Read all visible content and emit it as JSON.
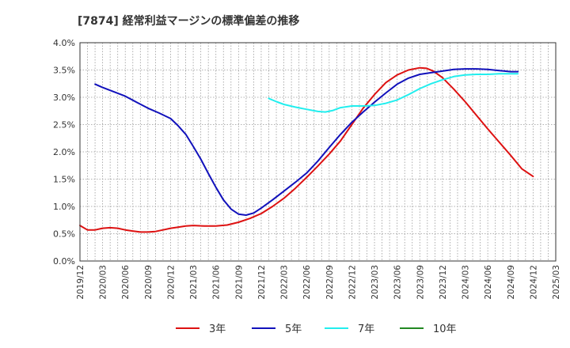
{
  "chart_data": {
    "type": "line",
    "title": "[7874]  経常利益マージンの標準偏差の推移",
    "xlabel": "",
    "ylabel": "",
    "x_ticks": [
      "2019/12",
      "2020/03",
      "2020/06",
      "2020/09",
      "2020/12",
      "2021/03",
      "2021/06",
      "2021/09",
      "2021/12",
      "2022/03",
      "2022/06",
      "2022/09",
      "2022/12",
      "2023/03",
      "2023/06",
      "2023/09",
      "2023/12",
      "2024/03",
      "2024/06",
      "2024/09",
      "2024/12",
      "2025/03"
    ],
    "y_ticks": [
      "0.0%",
      "0.5%",
      "1.0%",
      "1.5%",
      "2.0%",
      "2.5%",
      "3.0%",
      "3.5%",
      "4.0%"
    ],
    "ylim": [
      0,
      4.0
    ],
    "grid": true,
    "legend_position": "bottom",
    "series": [
      {
        "name": "3年",
        "color": "#dd1111",
        "points": [
          [
            0,
            0.65
          ],
          [
            0.33,
            0.57
          ],
          [
            0.67,
            0.57
          ],
          [
            1,
            0.6
          ],
          [
            1.33,
            0.61
          ],
          [
            1.67,
            0.6
          ],
          [
            2,
            0.57
          ],
          [
            2.33,
            0.55
          ],
          [
            2.67,
            0.53
          ],
          [
            3,
            0.53
          ],
          [
            3.33,
            0.54
          ],
          [
            3.67,
            0.57
          ],
          [
            4,
            0.6
          ],
          [
            4.33,
            0.62
          ],
          [
            4.67,
            0.64
          ],
          [
            5,
            0.65
          ],
          [
            5.5,
            0.64
          ],
          [
            6,
            0.64
          ],
          [
            6.5,
            0.66
          ],
          [
            7,
            0.71
          ],
          [
            7.5,
            0.78
          ],
          [
            8,
            0.87
          ],
          [
            8.5,
            1.0
          ],
          [
            9,
            1.15
          ],
          [
            9.5,
            1.33
          ],
          [
            10,
            1.53
          ],
          [
            10.5,
            1.74
          ],
          [
            11,
            1.96
          ],
          [
            11.5,
            2.2
          ],
          [
            12,
            2.5
          ],
          [
            12.5,
            2.8
          ],
          [
            13,
            3.05
          ],
          [
            13.5,
            3.27
          ],
          [
            14,
            3.41
          ],
          [
            14.5,
            3.5
          ],
          [
            15,
            3.54
          ],
          [
            15.3,
            3.53
          ],
          [
            15.6,
            3.48
          ],
          [
            16,
            3.36
          ],
          [
            16.5,
            3.15
          ],
          [
            17,
            2.92
          ],
          [
            17.5,
            2.67
          ],
          [
            18,
            2.42
          ],
          [
            18.5,
            2.18
          ],
          [
            19,
            1.94
          ],
          [
            19.5,
            1.69
          ],
          [
            20,
            1.55
          ]
        ]
      },
      {
        "name": "5年",
        "color": "#1111bb",
        "points": [
          [
            0.67,
            3.24
          ],
          [
            1,
            3.18
          ],
          [
            1.5,
            3.1
          ],
          [
            2,
            3.02
          ],
          [
            2.5,
            2.91
          ],
          [
            3,
            2.8
          ],
          [
            3.5,
            2.71
          ],
          [
            4,
            2.61
          ],
          [
            4.33,
            2.48
          ],
          [
            4.67,
            2.32
          ],
          [
            5,
            2.1
          ],
          [
            5.33,
            1.87
          ],
          [
            5.67,
            1.6
          ],
          [
            6,
            1.35
          ],
          [
            6.33,
            1.12
          ],
          [
            6.67,
            0.95
          ],
          [
            7,
            0.86
          ],
          [
            7.33,
            0.84
          ],
          [
            7.67,
            0.88
          ],
          [
            8,
            0.97
          ],
          [
            8.5,
            1.12
          ],
          [
            9,
            1.28
          ],
          [
            9.5,
            1.44
          ],
          [
            10,
            1.61
          ],
          [
            10.5,
            1.83
          ],
          [
            11,
            2.08
          ],
          [
            11.5,
            2.32
          ],
          [
            12,
            2.54
          ],
          [
            12.5,
            2.73
          ],
          [
            13,
            2.91
          ],
          [
            13.5,
            3.08
          ],
          [
            14,
            3.24
          ],
          [
            14.5,
            3.35
          ],
          [
            15,
            3.42
          ],
          [
            15.5,
            3.45
          ],
          [
            16,
            3.48
          ],
          [
            16.5,
            3.51
          ],
          [
            17,
            3.52
          ],
          [
            17.5,
            3.52
          ],
          [
            18,
            3.51
          ],
          [
            18.5,
            3.49
          ],
          [
            19,
            3.47
          ],
          [
            19.33,
            3.47
          ]
        ]
      },
      {
        "name": "7年",
        "color": "#22eeee",
        "points": [
          [
            8.33,
            2.98
          ],
          [
            8.67,
            2.92
          ],
          [
            9,
            2.87
          ],
          [
            9.5,
            2.82
          ],
          [
            10,
            2.78
          ],
          [
            10.5,
            2.74
          ],
          [
            10.83,
            2.73
          ],
          [
            11.17,
            2.76
          ],
          [
            11.5,
            2.81
          ],
          [
            12,
            2.84
          ],
          [
            12.5,
            2.84
          ],
          [
            13,
            2.85
          ],
          [
            13.5,
            2.89
          ],
          [
            14,
            2.95
          ],
          [
            14.5,
            3.05
          ],
          [
            15,
            3.16
          ],
          [
            15.5,
            3.25
          ],
          [
            16,
            3.32
          ],
          [
            16.5,
            3.38
          ],
          [
            17,
            3.41
          ],
          [
            17.5,
            3.42
          ],
          [
            18,
            3.42
          ],
          [
            18.5,
            3.43
          ],
          [
            19,
            3.43
          ],
          [
            19.33,
            3.43
          ]
        ]
      },
      {
        "name": "10年",
        "color": "#228822",
        "points": []
      }
    ]
  }
}
